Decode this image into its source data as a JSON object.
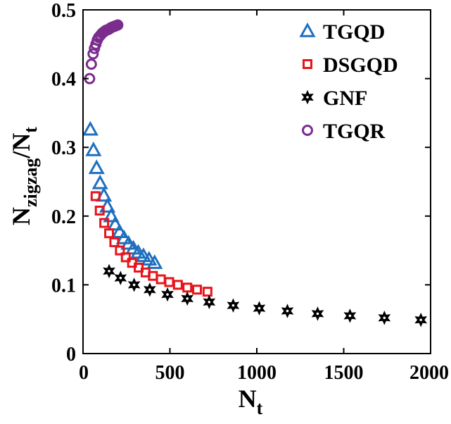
{
  "chart_data": {
    "type": "scatter",
    "xlim": [
      0,
      2000
    ],
    "ylim": [
      0,
      0.5
    ],
    "x_ticks": [
      "0",
      "500",
      "1000",
      "1500",
      "2000"
    ],
    "y_ticks": [
      "0",
      "0.1",
      "0.2",
      "0.3",
      "0.4",
      "0.5"
    ],
    "xlabel": {
      "main": "N",
      "sub": "t"
    },
    "ylabel": {
      "main": "N",
      "sub": "zigzag",
      "mid": "/N",
      "sub2": "t"
    },
    "grid": false,
    "legend_position": "top-right",
    "series": [
      {
        "name": "TGQD",
        "marker": "triangle",
        "color": "#1f6fbf",
        "points": [
          [
            42,
            0.326
          ],
          [
            60,
            0.296
          ],
          [
            78,
            0.27
          ],
          [
            98,
            0.248
          ],
          [
            120,
            0.23
          ],
          [
            140,
            0.214
          ],
          [
            162,
            0.2
          ],
          [
            185,
            0.188
          ],
          [
            210,
            0.177
          ],
          [
            236,
            0.168
          ],
          [
            262,
            0.16
          ],
          [
            290,
            0.153
          ],
          [
            318,
            0.147
          ],
          [
            348,
            0.142
          ],
          [
            380,
            0.137
          ],
          [
            412,
            0.132
          ]
        ]
      },
      {
        "name": "DSGQD",
        "marker": "square",
        "color": "#e8141a",
        "points": [
          [
            72,
            0.229
          ],
          [
            96,
            0.208
          ],
          [
            122,
            0.19
          ],
          [
            150,
            0.175
          ],
          [
            180,
            0.162
          ],
          [
            212,
            0.15
          ],
          [
            246,
            0.14
          ],
          [
            282,
            0.132
          ],
          [
            320,
            0.125
          ],
          [
            360,
            0.118
          ],
          [
            402,
            0.113
          ],
          [
            448,
            0.108
          ],
          [
            496,
            0.104
          ],
          [
            546,
            0.1
          ],
          [
            600,
            0.096
          ],
          [
            656,
            0.093
          ],
          [
            716,
            0.09
          ]
        ]
      },
      {
        "name": "GNF",
        "marker": "star",
        "color": "#000000",
        "points": [
          [
            150,
            0.12
          ],
          [
            216,
            0.11
          ],
          [
            294,
            0.1
          ],
          [
            384,
            0.093
          ],
          [
            486,
            0.086
          ],
          [
            600,
            0.08
          ],
          [
            726,
            0.075
          ],
          [
            864,
            0.07
          ],
          [
            1014,
            0.066
          ],
          [
            1176,
            0.062
          ],
          [
            1350,
            0.058
          ],
          [
            1536,
            0.055
          ],
          [
            1734,
            0.052
          ],
          [
            1944,
            0.049
          ]
        ]
      },
      {
        "name": "TGQR",
        "marker": "circle",
        "color": "#7b2d8e",
        "points": [
          [
            38,
            0.4
          ],
          [
            48,
            0.421
          ],
          [
            58,
            0.436
          ],
          [
            66,
            0.444
          ],
          [
            74,
            0.45
          ],
          [
            82,
            0.456
          ],
          [
            90,
            0.46
          ],
          [
            100,
            0.463
          ],
          [
            110,
            0.466
          ],
          [
            120,
            0.468
          ],
          [
            130,
            0.47
          ],
          [
            140,
            0.471
          ],
          [
            150,
            0.472
          ],
          [
            160,
            0.474
          ],
          [
            170,
            0.475
          ],
          [
            180,
            0.476
          ],
          [
            190,
            0.477
          ],
          [
            200,
            0.478
          ]
        ]
      }
    ]
  }
}
